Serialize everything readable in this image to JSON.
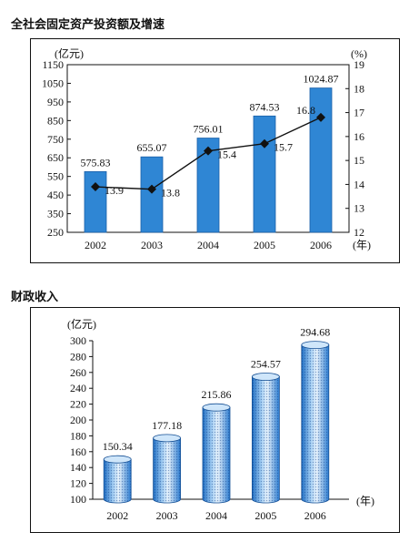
{
  "chart_data": [
    {
      "type": "bar",
      "title": "全社会固定资产投资额及增速",
      "categories": [
        "2002",
        "2003",
        "2004",
        "2005",
        "2006"
      ],
      "series": [
        {
          "values": [
            575.83,
            655.07,
            756.01,
            874.53,
            1024.87
          ],
          "axis": "left",
          "mark": "bar"
        },
        {
          "values": [
            13.9,
            13.8,
            15.4,
            15.7,
            16.8
          ],
          "axis": "right",
          "mark": "line"
        }
      ],
      "ylabel": "(亿元)",
      "y2label": "(%)",
      "xunit": "(年)",
      "ylim": [
        250,
        1150
      ],
      "yticks": [
        250,
        350,
        450,
        550,
        650,
        750,
        850,
        950,
        1050,
        1150
      ],
      "y2lim": [
        12,
        19
      ],
      "y2ticks": [
        12,
        13,
        14,
        15,
        16,
        17,
        18,
        19
      ],
      "bar_labels": [
        "575.83",
        "655.07",
        "756.01",
        "874.53",
        "1024.87"
      ],
      "line_labels": [
        "13.9",
        "13.8",
        "15.4",
        "15.7",
        "16.8"
      ],
      "colors": {
        "bar": "#2f86d4",
        "line": "#111111"
      }
    },
    {
      "type": "bar",
      "title": "财政收入",
      "categories": [
        "2002",
        "2003",
        "2004",
        "2005",
        "2006"
      ],
      "values": [
        150.34,
        177.18,
        215.86,
        254.57,
        294.68
      ],
      "bar_labels": [
        "150.34",
        "177.18",
        "215.86",
        "254.57",
        "294.68"
      ],
      "ylabel": "(亿元)",
      "xunit": "(年)",
      "ylim": [
        100,
        300
      ],
      "yticks": [
        100,
        120,
        140,
        160,
        180,
        200,
        220,
        240,
        260,
        280,
        300
      ],
      "colors": {
        "bar": "#5fa8e6"
      }
    }
  ]
}
